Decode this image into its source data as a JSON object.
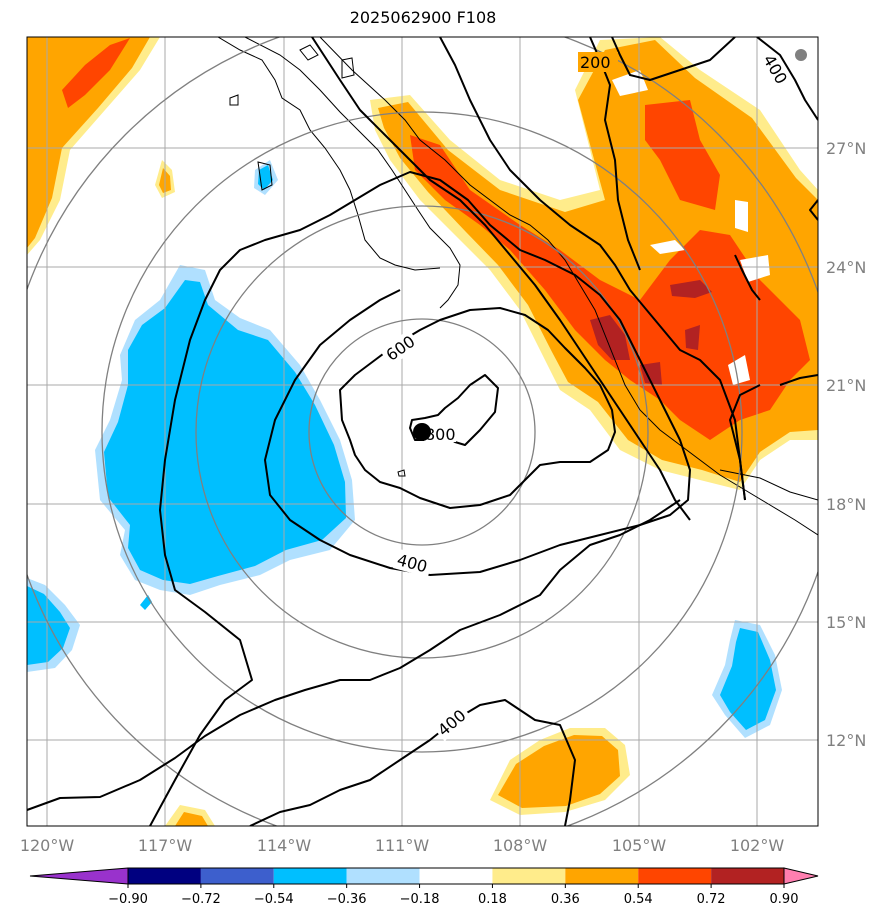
{
  "title": "2025062900 F108",
  "map": {
    "longitude_labels": [
      "120°W",
      "117°W",
      "114°W",
      "111°W",
      "108°W",
      "105°W",
      "102°W"
    ],
    "latitude_labels": [
      "27°N",
      "24°N",
      "21°N",
      "18°N",
      "15°N",
      "12°N"
    ],
    "center_marker": {
      "lon": -110.5,
      "lat": 19.8
    },
    "small_marker": {
      "lon": -101.0,
      "lat": 29.2
    },
    "range_rings_count": 4
  },
  "contours": {
    "labels": [
      "200",
      "400",
      "600",
      "800",
      "400",
      "400"
    ]
  },
  "colorbar": {
    "tick_labels": [
      "−0.90",
      "−0.72",
      "−0.54",
      "−0.36",
      "−0.18",
      "0.18",
      "0.36",
      "0.54",
      "0.72",
      "0.90"
    ],
    "colors": [
      "#9932cc",
      "#000080",
      "#3d5fcd",
      "#00bfff",
      "#b0e0ff",
      "#ffffff",
      "#ffec8b",
      "#ffa500",
      "#ff4500",
      "#b22222",
      "#ff7fb0"
    ]
  },
  "shading_colors": {
    "neg_light": "#b0e0ff",
    "neg": "#00bfff",
    "pos_light": "#ffec8b",
    "pos": "#ffa500",
    "pos_strong": "#ff4500",
    "pos_max": "#b22222"
  }
}
